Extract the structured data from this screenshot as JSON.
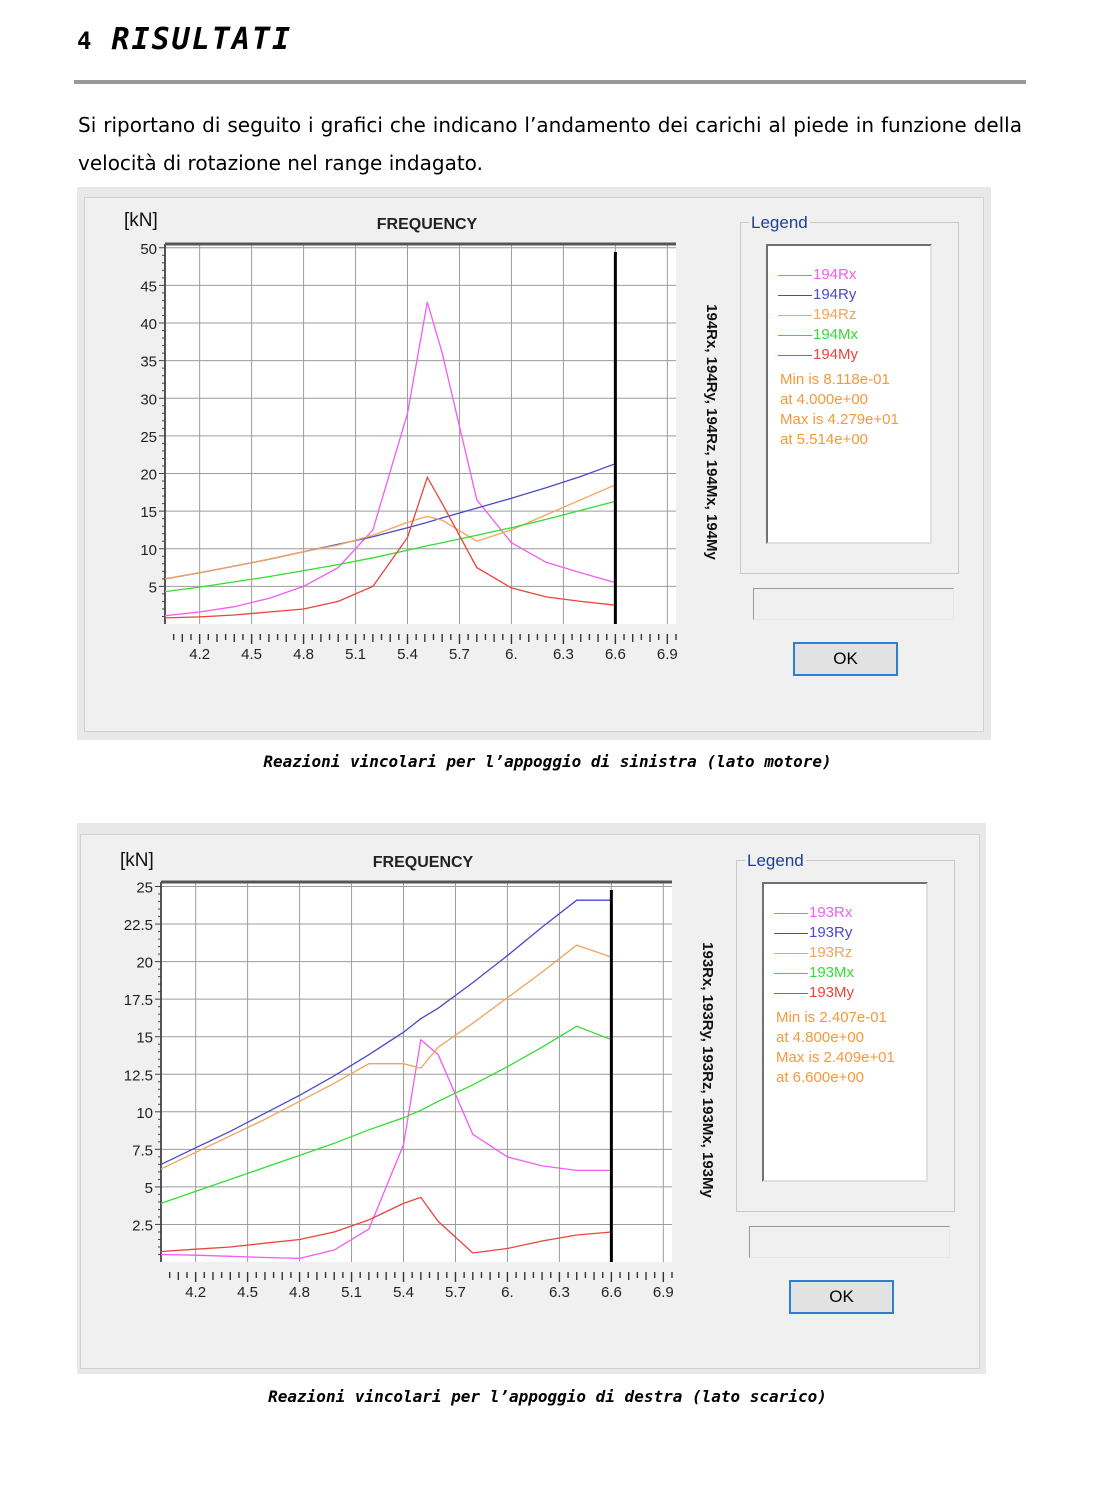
{
  "heading": {
    "number": "4",
    "title": "RISULTATI"
  },
  "intro": "Si riportano di seguito i grafici che indicano l’andamento dei carichi al piede in funzione della velocità di rotazione nel range indagato.",
  "ok_label": "OK",
  "legend_title": "Legend",
  "chart_data": [
    {
      "type": "line",
      "title": "FREQUENCY",
      "unit_label": "[kN]",
      "side_label": "194Rx, 194Ry, 194Rz, 194Mx, 194My",
      "x": [
        4.0,
        4.2,
        4.4,
        4.6,
        4.8,
        5.0,
        5.2,
        5.4,
        5.514,
        5.6,
        5.8,
        6.0,
        6.2,
        6.4,
        6.6
      ],
      "xlim": [
        4.0,
        6.95
      ],
      "ylim": [
        0,
        50.5
      ],
      "xticks": [
        "4.2",
        "4.5",
        "4.8",
        "5.1",
        "5.4",
        "5.7",
        "6.",
        "6.3",
        "6.6",
        "6.9"
      ],
      "xtick_values": [
        4.2,
        4.5,
        4.8,
        5.1,
        5.4,
        5.7,
        6.0,
        6.3,
        6.6,
        6.9
      ],
      "yticks": [
        "5",
        "10",
        "15",
        "20",
        "25",
        "30",
        "35",
        "40",
        "45",
        "50"
      ],
      "ytick_values": [
        5,
        10,
        15,
        20,
        25,
        30,
        35,
        40,
        45,
        50
      ],
      "cursor_x": 6.6,
      "grid": true,
      "series": [
        {
          "name": "194Rx",
          "color": "#f25cf2",
          "values": [
            1.1,
            1.6,
            2.3,
            3.4,
            5.0,
            7.5,
            12.5,
            28.0,
            42.79,
            36.0,
            16.5,
            10.8,
            8.2,
            6.8,
            5.5
          ]
        },
        {
          "name": "194Ry",
          "color": "#4a4ac6",
          "values": [
            6.0,
            6.8,
            7.7,
            8.6,
            9.6,
            10.6,
            11.6,
            12.8,
            13.5,
            14.1,
            15.4,
            16.7,
            18.1,
            19.6,
            21.3
          ]
        },
        {
          "name": "194Rz",
          "color": "#f2a35c",
          "values": [
            6.0,
            6.8,
            7.7,
            8.6,
            9.6,
            10.5,
            11.8,
            13.5,
            14.3,
            13.8,
            11.0,
            12.5,
            14.5,
            16.5,
            18.5
          ]
        },
        {
          "name": "194Mx",
          "color": "#33dd33",
          "values": [
            4.3,
            4.9,
            5.6,
            6.3,
            7.1,
            7.9,
            8.8,
            9.8,
            10.4,
            10.8,
            11.8,
            12.8,
            13.9,
            15.1,
            16.3
          ]
        },
        {
          "name": "194My",
          "color": "#e8453c",
          "values": [
            0.81,
            0.95,
            1.2,
            1.6,
            2.0,
            3.0,
            5.0,
            11.5,
            19.5,
            16.0,
            7.5,
            4.8,
            3.6,
            3.0,
            2.5
          ]
        }
      ],
      "info": [
        "Min is 8.118e-01",
        "at 4.000e+00",
        "Max is 4.279e+01",
        "at 5.514e+00"
      ],
      "caption": "Reazioni vincolari per l’appoggio di sinistra (lato motore)"
    },
    {
      "type": "line",
      "title": "FREQUENCY",
      "unit_label": "[kN]",
      "side_label": "193Rx, 193Ry, 193Rz, 193Mx, 193My",
      "x": [
        4.0,
        4.2,
        4.4,
        4.6,
        4.8,
        5.0,
        5.2,
        5.4,
        5.5,
        5.6,
        5.8,
        6.0,
        6.2,
        6.4,
        6.6
      ],
      "xlim": [
        4.0,
        6.95
      ],
      "ylim": [
        0,
        25.3
      ],
      "xticks": [
        "4.2",
        "4.5",
        "4.8",
        "5.1",
        "5.4",
        "5.7",
        "6.",
        "6.3",
        "6.6",
        "6.9"
      ],
      "xtick_values": [
        4.2,
        4.5,
        4.8,
        5.1,
        5.4,
        5.7,
        6.0,
        6.3,
        6.6,
        6.9
      ],
      "yticks": [
        "2.5",
        "5",
        "7.5",
        "10",
        "12.5",
        "15",
        "17.5",
        "20",
        "22.5",
        "25"
      ],
      "ytick_values": [
        2.5,
        5,
        7.5,
        10,
        12.5,
        15,
        17.5,
        20,
        22.5,
        25
      ],
      "cursor_x": 6.6,
      "grid": true,
      "series": [
        {
          "name": "193Rx",
          "color": "#f25cf2",
          "values": [
            0.5,
            0.45,
            0.38,
            0.3,
            0.24,
            0.8,
            2.2,
            7.8,
            14.8,
            13.8,
            8.5,
            7.0,
            6.4,
            6.1,
            6.1
          ]
        },
        {
          "name": "193Ry",
          "color": "#4a4ac6",
          "values": [
            6.5,
            7.6,
            8.7,
            9.9,
            11.1,
            12.4,
            13.8,
            15.3,
            16.2,
            16.9,
            18.6,
            20.4,
            22.3,
            24.09,
            24.09
          ]
        },
        {
          "name": "193Rz",
          "color": "#f2a35c",
          "values": [
            6.2,
            7.3,
            8.4,
            9.5,
            10.7,
            11.9,
            13.2,
            13.2,
            12.9,
            14.3,
            15.9,
            17.6,
            19.3,
            21.1,
            20.3
          ]
        },
        {
          "name": "193Mx",
          "color": "#33dd33",
          "values": [
            3.9,
            4.7,
            5.5,
            6.3,
            7.1,
            7.9,
            8.8,
            9.6,
            10.1,
            10.7,
            11.8,
            13.0,
            14.3,
            15.7,
            14.8
          ]
        },
        {
          "name": "193My",
          "color": "#e8453c",
          "values": [
            0.7,
            0.85,
            1.0,
            1.25,
            1.5,
            2.0,
            2.8,
            3.9,
            4.3,
            2.7,
            0.6,
            0.9,
            1.4,
            1.8,
            2.0
          ]
        }
      ],
      "info": [
        "Min is 2.407e-01",
        "at 4.800e+00",
        "Max is 2.409e+01",
        "at 6.600e+00"
      ],
      "caption": "Reazioni vincolari per l’appoggio di destra (lato scarico)"
    }
  ]
}
